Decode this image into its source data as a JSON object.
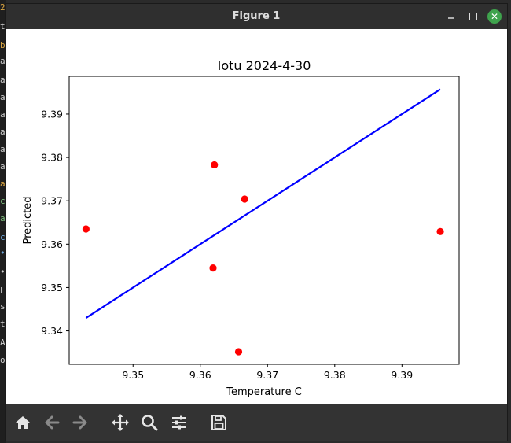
{
  "window": {
    "title": "Figure 1"
  },
  "window_controls": [
    "minimize",
    "maximize",
    "close"
  ],
  "toolbar": {
    "buttons": [
      "home-icon",
      "back-arrow-icon",
      "forward-arrow-icon",
      "pan-move-icon",
      "zoom-magnifier-icon",
      "configure-subplots-icon",
      "save-floppy-icon"
    ]
  },
  "background_terminal_chars": [
    "2",
    "t",
    "b",
    "a",
    "a",
    "a",
    "a",
    "a",
    "a",
    "a",
    "a",
    "c",
    "a",
    "c",
    "•",
    "•",
    "L",
    "s",
    "t",
    "A",
    "o"
  ],
  "colors": {
    "points": "#ff0000",
    "line": "#0000ff",
    "toolbar": "#333333",
    "close_button": "#3fa34d"
  },
  "chart_data": {
    "type": "scatter",
    "title": "Iotu 2024-4-30",
    "xlabel": "Temperature C",
    "ylabel": "Predicted",
    "xlim": [
      9.3405,
      9.3985
    ],
    "ylim": [
      9.3323,
      9.3987
    ],
    "xticks": [
      9.35,
      9.36,
      9.37,
      9.38,
      9.39
    ],
    "xtick_labels": [
      "9.35",
      "9.36",
      "9.37",
      "9.38",
      "9.39"
    ],
    "yticks": [
      9.34,
      9.35,
      9.36,
      9.37,
      9.38,
      9.39
    ],
    "ytick_labels": [
      "9.34",
      "9.35",
      "9.36",
      "9.37",
      "9.38",
      "9.39"
    ],
    "grid": false,
    "series": [
      {
        "kind": "points",
        "x": [
          9.343,
          9.3619,
          9.3621,
          9.3657,
          9.3666,
          9.3957
        ],
        "y": [
          9.3635,
          9.3545,
          9.3783,
          9.3352,
          9.3704,
          9.3629
        ]
      },
      {
        "kind": "line",
        "x": [
          9.343,
          9.3957
        ],
        "y": [
          9.343,
          9.3957
        ]
      }
    ]
  }
}
